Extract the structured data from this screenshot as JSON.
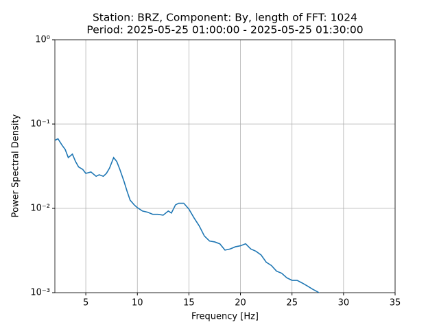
{
  "chart_data": {
    "type": "line",
    "title": "Station: BRZ, Component: By, length of FFT: 1024",
    "subtitle": "Period: 2025-05-25 01:00:00 - 2025-05-25 01:30:00",
    "x_label": "Frequency [Hz]",
    "y_label": "Power Spectral Density",
    "log_y": true,
    "grid": true,
    "xlim": [
      2,
      35
    ],
    "xticks": [
      5,
      10,
      15,
      20,
      25,
      30,
      35
    ],
    "ylim": [
      0.001,
      1
    ],
    "yticks": [
      {
        "value": 1,
        "label": "10⁰"
      },
      {
        "value": 0.1,
        "label": "10⁻¹"
      },
      {
        "value": 0.01,
        "label": "10⁻²"
      },
      {
        "value": 0.001,
        "label": "10⁻³"
      }
    ],
    "x": [
      2,
      2.3,
      2.7,
      3,
      3.3,
      3.7,
      4,
      4.3,
      4.7,
      5,
      5.5,
      6,
      6.3,
      6.7,
      7,
      7.3,
      7.7,
      8,
      8.3,
      8.7,
      9,
      9.3,
      9.7,
      10,
      10.5,
      11,
      11.5,
      12,
      12.5,
      13,
      13.3,
      13.7,
      14,
      14.5,
      15,
      15.5,
      16,
      16.5,
      17,
      17.5,
      18,
      18.5,
      19,
      19.5,
      20,
      20.5,
      21,
      21.5,
      22,
      22.5,
      23,
      23.5,
      24,
      24.5,
      25,
      25.5,
      26,
      26.5,
      27,
      27.5,
      27.7
    ],
    "series": [
      {
        "color": "#1f77b4",
        "values": [
          0.064,
          0.067,
          0.056,
          0.05,
          0.04,
          0.044,
          0.036,
          0.031,
          0.029,
          0.026,
          0.027,
          0.024,
          0.025,
          0.024,
          0.026,
          0.03,
          0.04,
          0.036,
          0.029,
          0.021,
          0.016,
          0.0125,
          0.011,
          0.0102,
          0.0093,
          0.009,
          0.0085,
          0.0085,
          0.0083,
          0.0093,
          0.0088,
          0.011,
          0.0115,
          0.0115,
          0.0098,
          0.0077,
          0.0062,
          0.0047,
          0.0041,
          0.004,
          0.0038,
          0.0032,
          0.0033,
          0.0035,
          0.0036,
          0.0038,
          0.0033,
          0.0031,
          0.0028,
          0.0023,
          0.0021,
          0.0018,
          0.0017,
          0.0015,
          0.0014,
          0.0014,
          0.0013,
          0.0012,
          0.0011,
          0.00102,
          0.00098
        ]
      }
    ]
  }
}
